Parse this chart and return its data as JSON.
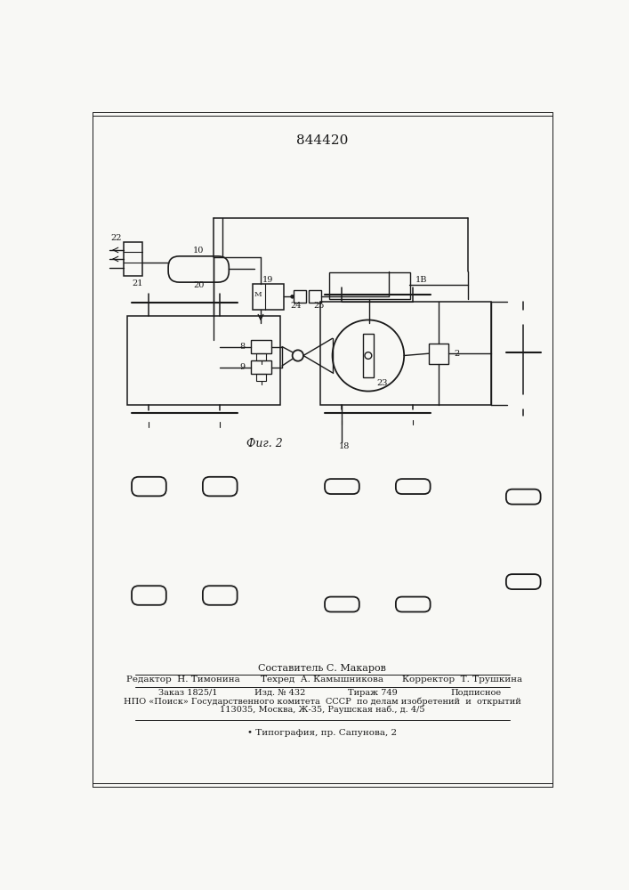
{
  "title": "844420",
  "fig2_label": "Фиг. 2",
  "bg_color": "#f8f8f5",
  "line_color": "#1a1a1a",
  "footer_line0": "Составитель С. Макаров",
  "footer_line1": "Редактор  Н. Тимонина",
  "footer_line1b": "Техред  А. Камышникова",
  "footer_line1c": "Корректор  Т. Трушкина",
  "footer_line2a": "Заказ 1825/1",
  "footer_line2b": "Изд. № 432",
  "footer_line2c": "Тираж 749",
  "footer_line2d": "Подписное",
  "footer_line3": "НПО «Поиск» Государственного комитета  СССР  по делам изобретений  и  открытий",
  "footer_line4": "113035, Москва, Ж-35, Раушская наб., д. 4/5",
  "footer_line5": "• Типография, пр. Сапунова, 2"
}
